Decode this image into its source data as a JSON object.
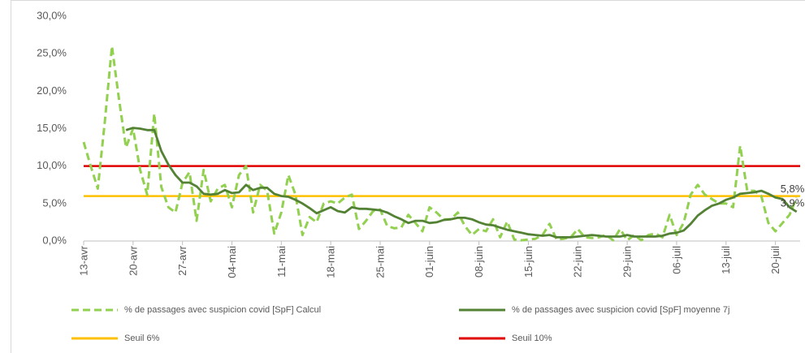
{
  "chart_data": {
    "type": "line",
    "categories": [
      "13-avr",
      null,
      null,
      null,
      null,
      null,
      null,
      "20-avr",
      null,
      null,
      null,
      null,
      null,
      null,
      "27-avr",
      null,
      null,
      null,
      null,
      null,
      null,
      "04-mai",
      null,
      null,
      null,
      null,
      null,
      null,
      "11-mai",
      null,
      null,
      null,
      null,
      null,
      null,
      "18-mai",
      null,
      null,
      null,
      null,
      null,
      null,
      "25-mai",
      null,
      null,
      null,
      null,
      null,
      null,
      "01-juin",
      null,
      null,
      null,
      null,
      null,
      null,
      "08-juin",
      null,
      null,
      null,
      null,
      null,
      null,
      "15-juin",
      null,
      null,
      null,
      null,
      null,
      null,
      "22-juin",
      null,
      null,
      null,
      null,
      null,
      null,
      "29-juin",
      null,
      null,
      null,
      null,
      null,
      null,
      "06-juil",
      null,
      null,
      null,
      null,
      null,
      null,
      "13-juil",
      null,
      null,
      null,
      null,
      null,
      null,
      "20-juil",
      null,
      null,
      null
    ],
    "series": [
      {
        "name": "% de passages avec suspicion covid [SpF] Calcul",
        "color": "#92d050",
        "dash": true,
        "values": [
          13.2,
          10,
          7,
          16,
          26,
          19,
          12.5,
          15,
          9.5,
          6.2,
          17,
          7.2,
          4.5,
          3.8,
          7.8,
          9.2,
          2.7,
          9.5,
          5.3,
          7,
          7.5,
          4.5,
          8.8,
          10,
          3.8,
          7.5,
          6.7,
          1,
          3.8,
          8.8,
          6.2,
          0.8,
          3.2,
          2.5,
          5,
          5.3,
          5,
          5.8,
          6.2,
          1.6,
          2.7,
          4,
          4.2,
          2,
          1.7,
          1.8,
          3.5,
          2.4,
          1.3,
          4.5,
          3.8,
          2.9,
          2.9,
          3.8,
          2,
          0.8,
          1.6,
          1.3,
          2.9,
          0.5,
          2.6,
          0.2,
          0.1,
          0.2,
          0.3,
          0.8,
          2.3,
          0.2,
          0.3,
          0.5,
          1.6,
          0.5,
          0.4,
          0.5,
          0.8,
          0.1,
          1.6,
          0.1,
          0.8,
          0.1,
          0.8,
          1,
          0.5,
          3.5,
          0.8,
          2.4,
          6.2,
          7.5,
          6.2,
          5.6,
          5,
          5,
          4.5,
          12.7,
          6.7,
          6.7,
          6,
          2.4,
          1.3,
          2.4,
          3.5,
          5.8
        ],
        "value_labels": [
          null,
          null,
          null,
          null,
          null,
          null,
          null,
          null,
          null,
          null,
          null,
          null,
          null,
          null,
          null,
          null,
          null,
          null,
          null,
          null,
          null,
          null,
          null,
          null,
          null,
          null,
          null,
          null,
          null,
          null,
          null,
          null,
          null,
          null,
          null,
          null,
          null,
          null,
          null,
          null,
          null,
          null,
          null,
          null,
          null,
          null,
          null,
          null,
          null,
          null,
          null,
          null,
          null,
          null,
          null,
          null,
          null,
          null,
          null,
          null,
          null,
          null,
          null,
          null,
          null,
          null,
          null,
          null,
          null,
          null,
          null,
          null,
          null,
          null,
          null,
          null,
          null,
          null,
          null,
          null,
          null,
          null,
          null,
          null,
          null,
          null,
          null,
          null,
          null,
          null,
          null,
          null,
          null,
          null,
          null,
          null,
          null,
          null,
          null,
          null,
          null,
          "5,8%"
        ]
      },
      {
        "name": "% de passages avec suspicion covid [SpF] moyenne 7j",
        "color": "#548235",
        "dash": false,
        "values": [
          null,
          null,
          null,
          null,
          null,
          null,
          14.8,
          15.1,
          15,
          14.8,
          14.8,
          12,
          10.2,
          8.8,
          7.8,
          7.8,
          7.3,
          6.3,
          6.2,
          6.3,
          6.8,
          6.4,
          6.5,
          7.5,
          6.8,
          7.1,
          7.1,
          6.3,
          6,
          5.9,
          5.5,
          5,
          4.4,
          3.7,
          4.1,
          4.5,
          4,
          3.8,
          4.5,
          4.3,
          4.3,
          4.2,
          4.1,
          3.8,
          3.3,
          2.9,
          2.4,
          2.7,
          2.7,
          2.4,
          2.5,
          2.8,
          2.9,
          3.1,
          3.1,
          2.9,
          2.5,
          2.2,
          2.1,
          1.8,
          1.5,
          1.3,
          1.1,
          0.9,
          0.8,
          0.7,
          0.8,
          0.5,
          0.5,
          0.5,
          0.6,
          0.7,
          0.8,
          0.7,
          0.6,
          0.6,
          0.6,
          0.8,
          0.6,
          0.6,
          0.6,
          0.6,
          0.7,
          1,
          1.1,
          1.4,
          2.3,
          3.4,
          4.1,
          4.7,
          5,
          5.5,
          5.8,
          6.3,
          6.4,
          6.5,
          6.7,
          6.3,
          5.8,
          5.6,
          4.5,
          3.9
        ],
        "value_labels": [
          null,
          null,
          null,
          null,
          null,
          null,
          null,
          null,
          null,
          null,
          null,
          null,
          null,
          null,
          null,
          null,
          null,
          null,
          null,
          null,
          null,
          null,
          null,
          null,
          null,
          null,
          null,
          null,
          null,
          null,
          null,
          null,
          null,
          null,
          null,
          null,
          null,
          null,
          null,
          null,
          null,
          null,
          null,
          null,
          null,
          null,
          null,
          null,
          null,
          null,
          null,
          null,
          null,
          null,
          null,
          null,
          null,
          null,
          null,
          null,
          null,
          null,
          null,
          null,
          null,
          null,
          null,
          null,
          null,
          null,
          null,
          null,
          null,
          null,
          null,
          null,
          null,
          null,
          null,
          null,
          null,
          null,
          null,
          null,
          null,
          null,
          null,
          null,
          null,
          null,
          null,
          null,
          null,
          null,
          null,
          null,
          null,
          null,
          null,
          null,
          null,
          "3,9%"
        ]
      }
    ],
    "thresholds": [
      {
        "name": "Seuil 6%",
        "color": "#ffc000",
        "value": 6
      },
      {
        "name": "Seuil 10%",
        "color": "#e00000",
        "value": 10
      }
    ],
    "ylim": [
      0,
      30
    ],
    "yticks": [
      {
        "value": 0,
        "label": "0,0%"
      },
      {
        "value": 5,
        "label": "5,0%"
      },
      {
        "value": 10,
        "label": "10,0%"
      },
      {
        "value": 15,
        "label": "15,0%"
      },
      {
        "value": 20,
        "label": "20,0%"
      },
      {
        "value": 25,
        "label": "25,0%"
      },
      {
        "value": 30,
        "label": "30,0%"
      }
    ],
    "grid": false,
    "legend": "bottom"
  }
}
